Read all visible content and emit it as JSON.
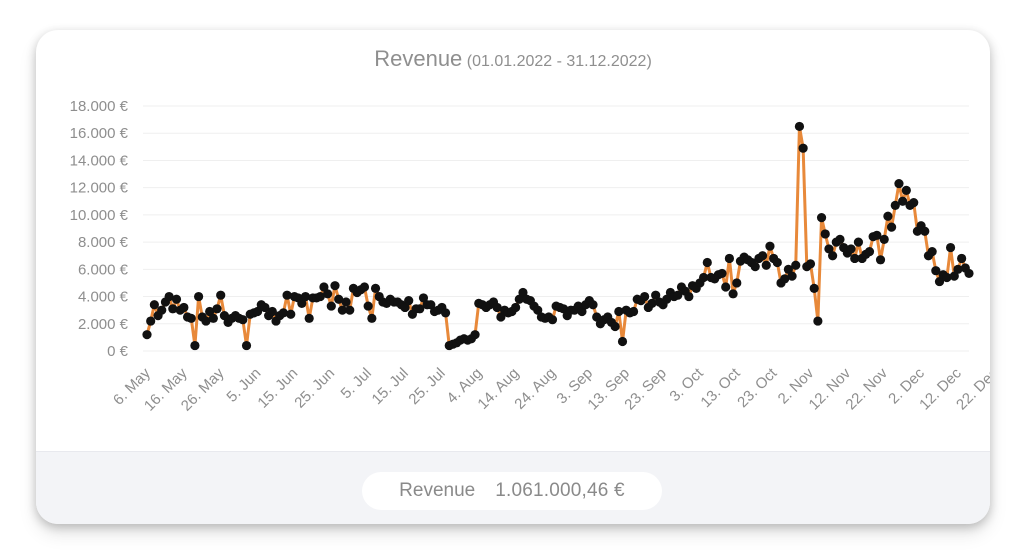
{
  "title": {
    "main": "Revenue",
    "sub": "(01.01.2022 - 31.12.2022)"
  },
  "summary": {
    "label": "Revenue",
    "value": "1.061.000,46 €"
  },
  "colors": {
    "line": "#e8893a",
    "marker": "#111111",
    "grid": "#efefef",
    "text": "#8e8e8e"
  },
  "chart_data": {
    "type": "line",
    "x_start": "2022-05-06",
    "x_labels": [
      "6. May",
      "16. May",
      "26. May",
      "5. Jun",
      "15. Jun",
      "25. Jun",
      "5. Jul",
      "15. Jul",
      "25. Jul",
      "4. Aug",
      "14. Aug",
      "24. Aug",
      "3. Sep",
      "13. Sep",
      "23. Sep",
      "3. Oct",
      "13. Oct",
      "23. Oct",
      "2. Nov",
      "12. Nov",
      "22. Nov",
      "2. Dec",
      "12. Dec",
      "22. Dec"
    ],
    "y_ticks": [
      "0 €",
      "2.000 €",
      "4.000 €",
      "6.000 €",
      "8.000 €",
      "10.000 €",
      "12.000 €",
      "14.000 €",
      "16.000 €",
      "18.000 €"
    ],
    "ylim": [
      0,
      18000
    ],
    "grid": true,
    "legend": false,
    "series": [
      {
        "values": [
          1200,
          2200,
          3400,
          2600,
          3000,
          3600,
          4000,
          3100,
          3800,
          3000,
          3200,
          2500,
          2400,
          400,
          4000,
          2500,
          2200,
          2900,
          2400,
          3100,
          4100,
          2600,
          2100,
          2400,
          2600,
          2400,
          2300,
          400,
          2700,
          2800,
          2900,
          3400,
          3200,
          2600,
          2900,
          2200,
          2600,
          2800,
          4100,
          2700,
          4000,
          3900,
          3500,
          4000,
          2400,
          3900,
          3900,
          4000,
          4700,
          4200,
          3300,
          4800,
          3800,
          3000,
          3600,
          3000,
          4600,
          4300,
          4500,
          4700,
          3300,
          2400,
          4600,
          4000,
          3600,
          3500,
          3800,
          3600,
          3600,
          3400,
          3200,
          3700,
          2700,
          3100,
          3100,
          3900,
          3400,
          3400,
          2900,
          3000,
          3200,
          2800,
          400,
          500,
          600,
          800,
          900,
          800,
          900,
          1200,
          3500,
          3400,
          3200,
          3400,
          3600,
          3200,
          2500,
          3000,
          2800,
          2900,
          3200,
          3800,
          4300,
          3800,
          3700,
          3300,
          3000,
          2500,
          2400,
          2500,
          2300,
          3300,
          3200,
          3100,
          2600,
          3000,
          3000,
          3300,
          2900,
          3400,
          3700,
          3400,
          2500,
          2000,
          2300,
          2500,
          2100,
          1800,
          2900,
          700,
          3000,
          2800,
          2900,
          3800,
          3700,
          4000,
          3200,
          3500,
          4100,
          3600,
          3400,
          3800,
          4300,
          4000,
          4100,
          4700,
          4400,
          4000,
          4800,
          4600,
          5000,
          5400,
          6500,
          5400,
          5300,
          5600,
          5700,
          4700,
          6800,
          4200,
          5000,
          6600,
          6900,
          6700,
          6500,
          6200,
          6800,
          7000,
          6300,
          7700,
          6800,
          6500,
          5000,
          5300,
          6000,
          5500,
          6300,
          16500,
          14900,
          6200,
          6400,
          4600,
          2200,
          9800,
          8600,
          7500,
          7000,
          8000,
          8200,
          7600,
          7200,
          7500,
          6800,
          8000,
          6800,
          7100,
          7300,
          8400,
          8500,
          6700,
          8200,
          9900,
          9100,
          10700,
          12300,
          11000,
          11800,
          10700,
          10900,
          8800,
          9200,
          8800,
          7000,
          7300,
          5900,
          5100,
          5600,
          5400,
          7600,
          5500,
          6000,
          6800,
          6100,
          5700
        ]
      }
    ]
  }
}
